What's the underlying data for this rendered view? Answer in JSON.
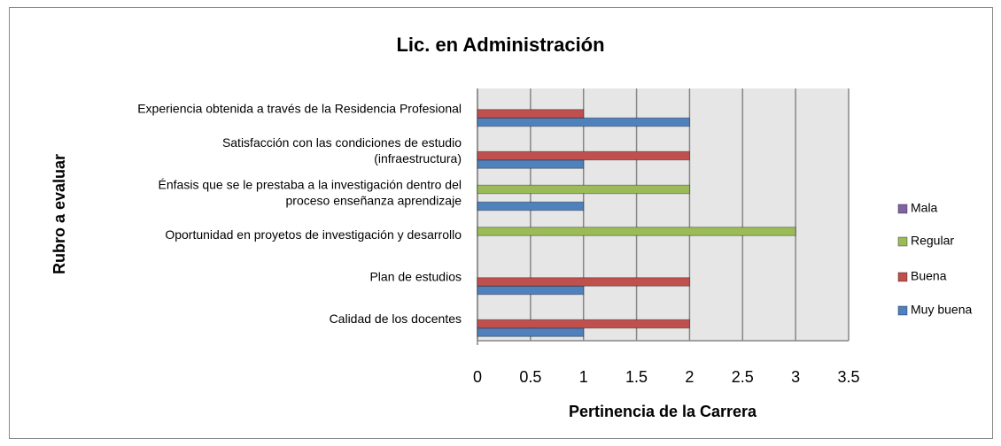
{
  "chart_data": {
    "type": "hbar",
    "title": "Lic. en Administración",
    "x_label": "Pertinencia de la Carrera",
    "y_label": "Rubro a evaluar",
    "categories": [
      [
        "Calidad de los docentes"
      ],
      [
        "Plan de estudios"
      ],
      [
        "Oportunidad en proyetos de investigación y desarrollo"
      ],
      [
        "Énfasis que se le prestaba a la investigación dentro del",
        "proceso enseñanza aprendizaje"
      ],
      [
        "Satisfacción con las condiciones de estudio",
        "(infraestructura)"
      ],
      [
        "Experiencia obtenida a través de la Residencia Profesional"
      ]
    ],
    "series": [
      {
        "name": "Muy buena",
        "color": "#4f81bd",
        "values": [
          1,
          1,
          0,
          1,
          1,
          2
        ]
      },
      {
        "name": "Buena",
        "color": "#c0504d",
        "values": [
          2,
          2,
          0,
          0,
          2,
          1
        ]
      },
      {
        "name": "Regular",
        "color": "#9bbb59",
        "values": [
          0,
          0,
          3,
          2,
          0,
          0
        ]
      },
      {
        "name": "Mala",
        "color": "#8064a2",
        "values": [
          0,
          0,
          0,
          0,
          0,
          0
        ]
      }
    ],
    "xlim": [
      0,
      3.5
    ],
    "xticks": [
      0,
      0.5,
      1,
      1.5,
      2,
      2.5,
      3,
      3.5
    ],
    "grid": true,
    "legend": "right"
  }
}
